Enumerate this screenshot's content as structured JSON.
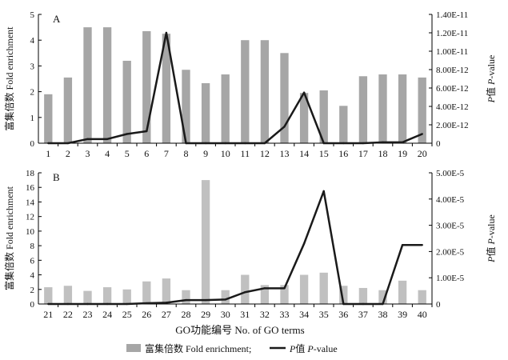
{
  "figure": {
    "xlabel": "GO功能编号 No. of GO terms",
    "legend": {
      "bar_label": "富集倍数 Fold enrichment;",
      "line_label_italic": "P",
      "line_label_rest": "值 ",
      "line_label_italic2": "P",
      "line_label_end": "-value"
    }
  },
  "colors": {
    "bars_a": "#a6a6a6",
    "bars_b": "#c0c0c0",
    "line": "#1a1a1a"
  },
  "chart_data": [
    {
      "panel": "A",
      "type": "bar",
      "x": [
        1,
        2,
        3,
        4,
        5,
        6,
        7,
        8,
        9,
        10,
        11,
        12,
        13,
        14,
        15,
        16,
        17,
        18,
        19,
        20
      ],
      "x_ticks": [
        "1",
        "2",
        "3",
        "4",
        "5",
        "6",
        "7",
        "8",
        "9",
        "10",
        "11",
        "12",
        "13",
        "14",
        "15",
        "16",
        "17",
        "18",
        "19",
        "20"
      ],
      "series": [
        {
          "name": "富集倍数 Fold enrichment",
          "type": "bar",
          "axis": "left",
          "values": [
            1.9,
            2.55,
            4.5,
            4.5,
            3.2,
            4.35,
            4.25,
            2.85,
            2.33,
            2.67,
            4.0,
            4.0,
            3.5,
            1.95,
            2.05,
            1.45,
            2.6,
            2.67,
            2.67,
            2.55
          ]
        },
        {
          "name": "P值 P-value",
          "type": "line",
          "axis": "right",
          "values": [
            0,
            0,
            4.5e-13,
            4.5e-13,
            1e-12,
            1.3e-12,
            1.2e-11,
            0,
            0,
            0,
            0,
            0,
            1.8e-12,
            5.5e-12,
            0,
            0,
            0,
            1e-13,
            1e-13,
            1e-12
          ]
        }
      ],
      "ylabel_left": "富集倍数 Fold enrichment",
      "ylim_left": [
        0,
        5
      ],
      "yticks_left": [
        "0",
        "1",
        "2",
        "3",
        "4",
        "5"
      ],
      "ylabel_right": "P值 P-value",
      "ylim_right": [
        0,
        1.4e-11
      ],
      "yticks_right": [
        "0",
        "2.00E-12",
        "4.00E-12",
        "6.00E-12",
        "8.00E-12",
        "1.00E-11",
        "1.20E-11",
        "1.40E-11"
      ]
    },
    {
      "panel": "B",
      "type": "bar",
      "x": [
        21,
        22,
        23,
        24,
        25,
        26,
        27,
        28,
        29,
        30,
        31,
        32,
        33,
        34,
        35,
        36,
        37,
        38,
        39,
        40
      ],
      "x_ticks": [
        "21",
        "22",
        "23",
        "24",
        "25",
        "26",
        "27",
        "28",
        "29",
        "30",
        "31",
        "32",
        "33",
        "34",
        "35",
        "36",
        "37",
        "38",
        "39",
        "40"
      ],
      "series": [
        {
          "name": "富集倍数 Fold enrichment",
          "type": "bar",
          "axis": "left",
          "values": [
            2.3,
            2.5,
            1.8,
            2.3,
            2.0,
            3.1,
            3.5,
            1.9,
            17.0,
            1.9,
            4.0,
            2.6,
            2.6,
            4.0,
            4.3,
            2.5,
            2.2,
            1.9,
            3.2,
            1.9
          ]
        },
        {
          "name": "P值 P-value",
          "type": "line",
          "axis": "right",
          "values": [
            0,
            0,
            0,
            0,
            0,
            3e-07,
            5e-07,
            1.5e-06,
            1.5e-06,
            1.7e-06,
            4.5e-06,
            6e-06,
            6e-06,
            2.3e-05,
            4.3e-05,
            0,
            0,
            0,
            2.25e-05,
            2.25e-05
          ]
        }
      ],
      "ylabel_left": "富集倍数 Fold enrichment",
      "ylim_left": [
        0,
        18
      ],
      "yticks_left": [
        "0",
        "2",
        "4",
        "6",
        "8",
        "10",
        "12",
        "14",
        "16",
        "18"
      ],
      "ylabel_right": "P值 P-value",
      "ylim_right": [
        0,
        5e-05
      ],
      "yticks_right": [
        "0",
        "1.00E-5",
        "2.00E-5",
        "3.00E-5",
        "4.00E-5",
        "5.00E-5"
      ]
    }
  ]
}
